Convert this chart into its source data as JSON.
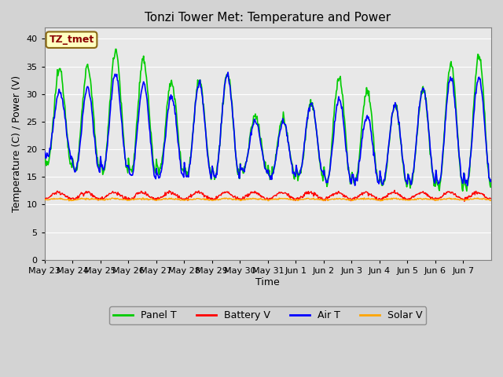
{
  "title": "Tonzi Tower Met: Temperature and Power",
  "ylabel": "Temperature (C) / Power (V)",
  "xlabel": "Time",
  "ylim": [
    0,
    42
  ],
  "yticks": [
    0,
    5,
    10,
    15,
    20,
    25,
    30,
    35,
    40
  ],
  "x_labels": [
    "May 23",
    "May 24",
    "May 25",
    "May 26",
    "May 27",
    "May 28",
    "May 29",
    "May 30",
    "May 31",
    "Jun 1",
    "Jun 2",
    "Jun 3",
    "Jun 4",
    "Jun 5",
    "Jun 6",
    "Jun 7"
  ],
  "annotation_text": "TZ_tmet",
  "annotation_color": "#8B0000",
  "annotation_bg": "#FFFFC0",
  "legend_entries": [
    "Panel T",
    "Battery V",
    "Air T",
    "Solar V"
  ],
  "legend_colors": [
    "#00CC00",
    "#FF0000",
    "#0000FF",
    "#FFA500"
  ],
  "colors": {
    "panel_t": "#00CC00",
    "battery_v": "#FF0000",
    "air_t": "#0000FF",
    "solar_v": "#FFA500"
  },
  "plot_bg": "#E8E8E8",
  "fig_bg": "#D3D3D3",
  "panel_day_peaks": [
    34.5,
    35,
    38,
    36,
    32,
    32.5,
    33.5,
    26,
    25.5,
    28.5,
    33,
    30.5,
    28,
    31,
    35.5,
    37
  ],
  "panel_day_mins": [
    17,
    16,
    16,
    16,
    16,
    15.5,
    15,
    16,
    15,
    15,
    14,
    14,
    13.5,
    13.5,
    13,
    13
  ],
  "air_day_peaks": [
    30.5,
    31,
    33.5,
    32,
    29.5,
    32,
    33.5,
    25,
    25,
    28.5,
    29,
    26,
    28,
    31,
    33,
    33
  ],
  "air_day_mins": [
    18.5,
    16,
    16.5,
    15,
    15,
    15,
    15,
    16,
    15,
    15.5,
    14,
    14,
    14,
    14,
    14,
    14
  ]
}
